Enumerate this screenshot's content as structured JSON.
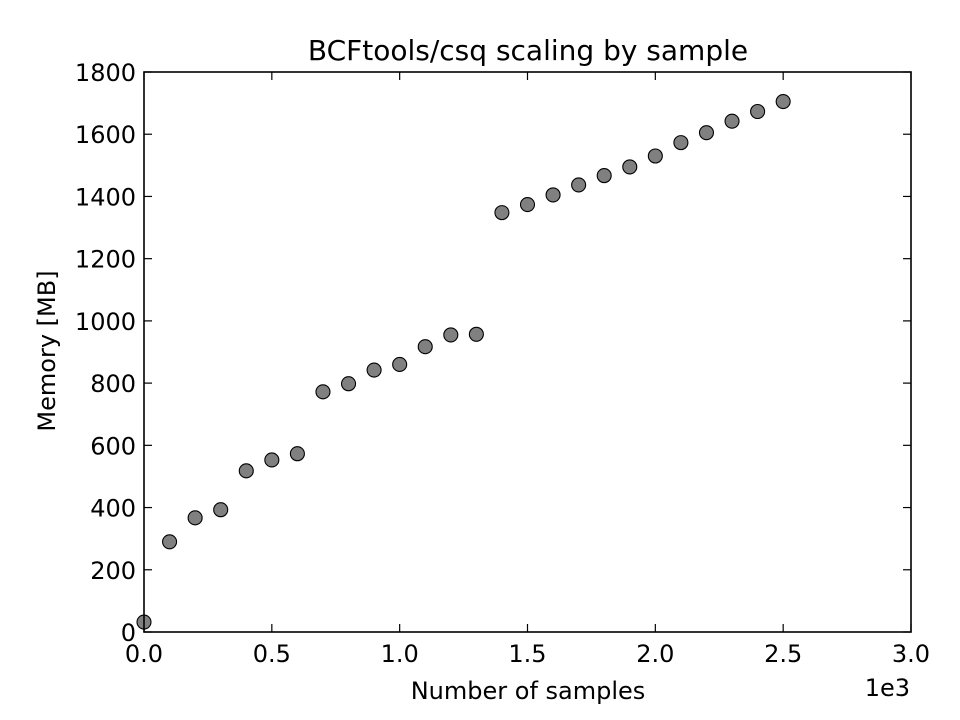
{
  "chart_data": {
    "type": "scatter",
    "title": "BCFtools/csq scaling by sample",
    "xlabel": "Number of samples",
    "ylabel": "Memory [MB]",
    "x_offset_label": "1e3",
    "xlim": [
      0,
      3.0
    ],
    "ylim": [
      0,
      1800
    ],
    "x_ticks": [
      0.0,
      0.5,
      1.0,
      1.5,
      2.0,
      2.5,
      3.0
    ],
    "x_tick_labels": [
      "0.0",
      "0.5",
      "1.0",
      "1.5",
      "2.0",
      "2.5",
      "3.0"
    ],
    "y_ticks": [
      0,
      200,
      400,
      600,
      800,
      1000,
      1200,
      1400,
      1600,
      1800
    ],
    "y_tick_labels": [
      "0",
      "200",
      "400",
      "600",
      "800",
      "1000",
      "1200",
      "1400",
      "1600",
      "1800"
    ],
    "grid": false,
    "marker_color": "#808080",
    "marker_edge_color": "#000000",
    "x": [
      0.0,
      0.1,
      0.2,
      0.3,
      0.4,
      0.5,
      0.6,
      0.7,
      0.8,
      0.9,
      1.0,
      1.1,
      1.2,
      1.3,
      1.4,
      1.5,
      1.6,
      1.7,
      1.8,
      1.9,
      2.0,
      2.1,
      2.2,
      2.3,
      2.4,
      2.5
    ],
    "y": [
      32,
      290,
      367,
      393,
      518,
      553,
      573,
      772,
      798,
      842,
      860,
      917,
      955,
      957,
      1348,
      1374,
      1405,
      1437,
      1467,
      1495,
      1530,
      1573,
      1605,
      1642,
      1673,
      1705
    ]
  }
}
